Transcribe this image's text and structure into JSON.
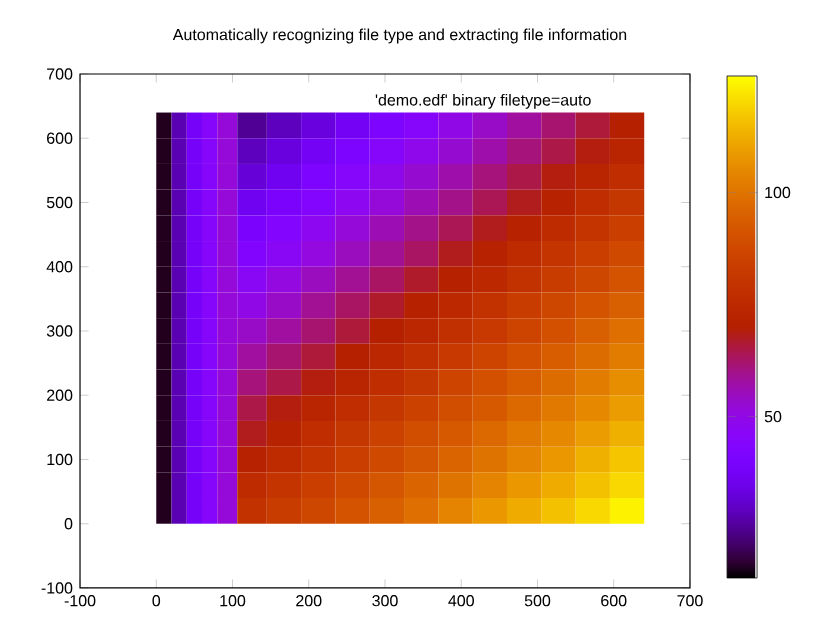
{
  "chart_data": {
    "type": "heatmap",
    "title": "Automatically recognizing file type and extracting file information",
    "annotations": [
      "'demo.edf' binary filetype=auto"
    ],
    "x": [
      10,
      30,
      50,
      70,
      90,
      122.5,
      167.5,
      212.5,
      257.5,
      302.5,
      347.5,
      392.5,
      437.5,
      482.5,
      527.5,
      572.5,
      617.5
    ],
    "y": [
      620,
      580,
      540,
      500,
      460,
      420,
      380,
      340,
      300,
      260,
      220,
      180,
      140,
      100,
      60,
      20
    ],
    "cells": [
      [
        16,
        28,
        38,
        45,
        52,
        25,
        29,
        33,
        37,
        41,
        45,
        50,
        54,
        58,
        62,
        66,
        70
      ],
      [
        16,
        28,
        38,
        45,
        52,
        29,
        33,
        37,
        41,
        45,
        49,
        53,
        57,
        61,
        65,
        69,
        73
      ],
      [
        16,
        28,
        38,
        45,
        52,
        32,
        36,
        41,
        45,
        49,
        53,
        57,
        61,
        65,
        69,
        73,
        77
      ],
      [
        16,
        28,
        38,
        45,
        52,
        36,
        40,
        44,
        48,
        52,
        56,
        60,
        64,
        68,
        72,
        77,
        81
      ],
      [
        16,
        28,
        38,
        45,
        52,
        40,
        44,
        48,
        52,
        56,
        60,
        64,
        68,
        72,
        76,
        80,
        84
      ],
      [
        16,
        28,
        38,
        45,
        52,
        43,
        47,
        51,
        55,
        59,
        63,
        68,
        72,
        76,
        80,
        84,
        88
      ],
      [
        16,
        28,
        38,
        45,
        52,
        47,
        51,
        55,
        59,
        63,
        67,
        71,
        75,
        79,
        83,
        87,
        91
      ],
      [
        16,
        28,
        38,
        45,
        52,
        50,
        54,
        59,
        63,
        67,
        71,
        75,
        79,
        83,
        87,
        91,
        95
      ],
      [
        16,
        28,
        38,
        45,
        52,
        54,
        58,
        62,
        66,
        70,
        74,
        78,
        82,
        86,
        90,
        95,
        99
      ],
      [
        16,
        28,
        38,
        45,
        52,
        58,
        62,
        66,
        70,
        74,
        78,
        82,
        86,
        90,
        94,
        98,
        102
      ],
      [
        16,
        28,
        38,
        45,
        52,
        61,
        65,
        69,
        73,
        77,
        81,
        86,
        90,
        94,
        98,
        102,
        106
      ],
      [
        16,
        28,
        38,
        45,
        52,
        65,
        69,
        73,
        77,
        81,
        85,
        89,
        93,
        97,
        101,
        105,
        109
      ],
      [
        16,
        28,
        38,
        45,
        52,
        68,
        72,
        77,
        81,
        85,
        89,
        93,
        97,
        101,
        105,
        109,
        113
      ],
      [
        16,
        28,
        38,
        45,
        52,
        72,
        76,
        80,
        84,
        88,
        92,
        96,
        100,
        104,
        108,
        113,
        117
      ],
      [
        16,
        28,
        38,
        45,
        52,
        76,
        80,
        84,
        88,
        92,
        96,
        100,
        104,
        108,
        112,
        116,
        120
      ],
      [
        16,
        28,
        38,
        45,
        52,
        79,
        83,
        87,
        91,
        95,
        99,
        104,
        108,
        112,
        116,
        120,
        124
      ]
    ],
    "clim": [
      14,
      126
    ],
    "cticks": [
      50,
      100
    ],
    "xlim": [
      -100,
      700
    ],
    "xticks": [
      -100,
      0,
      100,
      200,
      300,
      400,
      500,
      600,
      700
    ],
    "ylim": [
      -100,
      700
    ],
    "yticks": [
      -100,
      0,
      100,
      200,
      300,
      400,
      500,
      600,
      700
    ]
  }
}
